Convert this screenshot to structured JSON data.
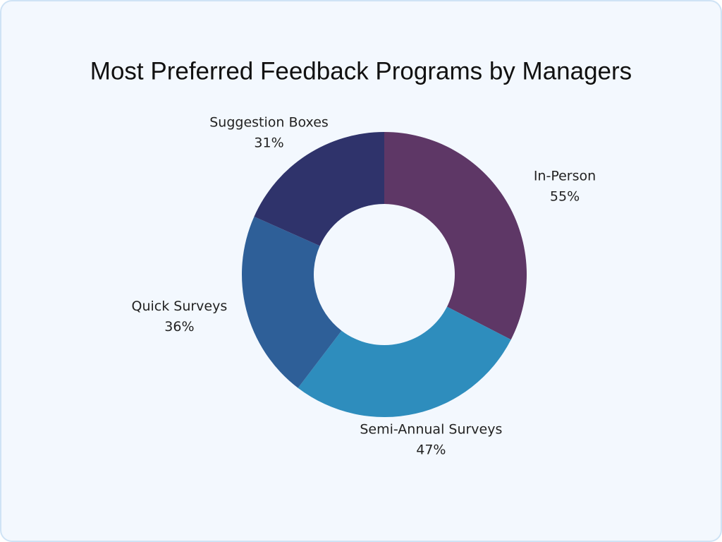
{
  "chart_data": {
    "type": "donut",
    "title": "Most Preferred Feedback Programs by Managers",
    "categories": [
      "In-Person",
      "Semi-Annual Surveys",
      "Quick Surveys",
      "Suggestion Boxes"
    ],
    "values": [
      55,
      47,
      36,
      31
    ],
    "value_labels": [
      "55%",
      "47%",
      "36%",
      "31%"
    ],
    "colors": [
      "#5e3766",
      "#2e8dbd",
      "#2e5f98",
      "#2f336b"
    ]
  }
}
